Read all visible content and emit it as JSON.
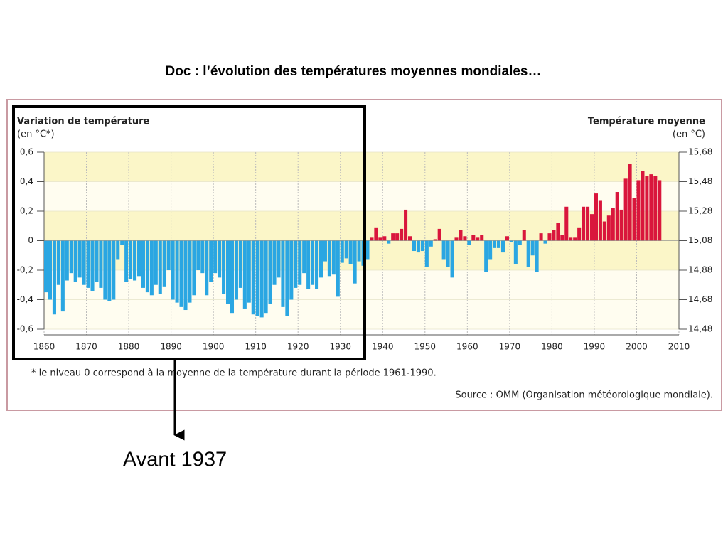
{
  "title": "Doc : l’évolution des températures moyennes mondiales…",
  "annotation": "Avant 1937",
  "chart_data": {
    "type": "bar",
    "ylabel": [
      "Variation de température",
      "(en °C*)"
    ],
    "y2label": [
      "Température moyenne",
      "(en °C)"
    ],
    "footnote": "* le niveau 0 correspond à la moyenne de la température durant la période 1961-1990.",
    "source": "Source : OMM (Organisation météorologique mondiale).",
    "x": [
      1860,
      1861,
      1862,
      1863,
      1864,
      1865,
      1866,
      1867,
      1868,
      1869,
      1870,
      1871,
      1872,
      1873,
      1874,
      1875,
      1876,
      1877,
      1878,
      1879,
      1880,
      1881,
      1882,
      1883,
      1884,
      1885,
      1886,
      1887,
      1888,
      1889,
      1890,
      1891,
      1892,
      1893,
      1894,
      1895,
      1896,
      1897,
      1898,
      1899,
      1900,
      1901,
      1902,
      1903,
      1904,
      1905,
      1906,
      1907,
      1908,
      1909,
      1910,
      1911,
      1912,
      1913,
      1914,
      1915,
      1916,
      1917,
      1918,
      1919,
      1920,
      1921,
      1922,
      1923,
      1924,
      1925,
      1926,
      1927,
      1928,
      1929,
      1930,
      1931,
      1932,
      1933,
      1934,
      1935,
      1936,
      1937,
      1938,
      1939,
      1940,
      1941,
      1942,
      1943,
      1944,
      1945,
      1946,
      1947,
      1948,
      1949,
      1950,
      1951,
      1952,
      1953,
      1954,
      1955,
      1956,
      1957,
      1958,
      1959,
      1960,
      1961,
      1962,
      1963,
      1964,
      1965,
      1966,
      1967,
      1968,
      1969,
      1970,
      1971,
      1972,
      1973,
      1974,
      1975,
      1976,
      1977,
      1978,
      1979,
      1980,
      1981,
      1982,
      1983,
      1984,
      1985,
      1986,
      1987,
      1988,
      1989,
      1990,
      1991,
      1992,
      1993,
      1994,
      1995,
      1996,
      1997,
      1998,
      1999,
      2000,
      2001,
      2002,
      2003,
      2004,
      2005
    ],
    "values": [
      -0.35,
      -0.4,
      -0.5,
      -0.3,
      -0.48,
      -0.27,
      -0.22,
      -0.28,
      -0.25,
      -0.3,
      -0.32,
      -0.34,
      -0.28,
      -0.32,
      -0.4,
      -0.41,
      -0.4,
      -0.13,
      -0.03,
      -0.28,
      -0.26,
      -0.27,
      -0.24,
      -0.32,
      -0.35,
      -0.37,
      -0.3,
      -0.36,
      -0.31,
      -0.2,
      -0.4,
      -0.42,
      -0.45,
      -0.47,
      -0.42,
      -0.37,
      -0.2,
      -0.22,
      -0.37,
      -0.28,
      -0.22,
      -0.25,
      -0.36,
      -0.43,
      -0.49,
      -0.4,
      -0.32,
      -0.46,
      -0.42,
      -0.5,
      -0.51,
      -0.52,
      -0.49,
      -0.43,
      -0.3,
      -0.25,
      -0.45,
      -0.51,
      -0.4,
      -0.32,
      -0.3,
      -0.22,
      -0.33,
      -0.3,
      -0.33,
      -0.25,
      -0.14,
      -0.24,
      -0.23,
      -0.38,
      -0.15,
      -0.12,
      -0.16,
      -0.29,
      -0.14,
      -0.17,
      -0.13,
      0.02,
      0.09,
      0.02,
      0.03,
      -0.02,
      0.05,
      0.05,
      0.08,
      0.21,
      0.03,
      -0.07,
      -0.08,
      -0.07,
      -0.18,
      -0.04,
      0.01,
      0.08,
      -0.13,
      -0.18,
      -0.25,
      0.02,
      0.07,
      0.03,
      -0.03,
      0.04,
      0.02,
      0.04,
      -0.21,
      -0.13,
      -0.05,
      -0.05,
      -0.08,
      0.03,
      -0.01,
      -0.16,
      -0.03,
      0.07,
      -0.18,
      -0.1,
      -0.21,
      0.05,
      -0.02,
      0.05,
      0.07,
      0.12,
      0.04,
      0.23,
      0.02,
      0.02,
      0.09,
      0.23,
      0.23,
      0.18,
      0.32,
      0.27,
      0.13,
      0.17,
      0.22,
      0.33,
      0.21,
      0.42,
      0.52,
      0.29,
      0.41,
      0.47,
      0.44,
      0.45,
      0.44,
      0.41
    ],
    "colors": {
      "positive": "#d9163c",
      "negative": "#2aa6e2"
    },
    "xlim": [
      1860,
      2010
    ],
    "xticks": [
      1860,
      1870,
      1880,
      1890,
      1900,
      1910,
      1920,
      1930,
      1940,
      1950,
      1960,
      1970,
      1980,
      1990,
      2000,
      2010
    ],
    "ylim": [
      -0.6,
      0.6
    ],
    "yticks": [
      {
        "value": -0.6,
        "label": "-0,6"
      },
      {
        "value": -0.4,
        "label": "-0,4"
      },
      {
        "value": -0.2,
        "label": "-0,2"
      },
      0,
      {
        "value": 0.2,
        "label": "0,2"
      },
      {
        "value": 0.4,
        "label": "0,4"
      },
      {
        "value": 0.6,
        "label": "0,6"
      }
    ],
    "y2lim": [
      14.48,
      15.68
    ],
    "y2ticks": [
      {
        "value": 14.48,
        "label": "14,48"
      },
      {
        "value": 14.68,
        "label": "14,68"
      },
      {
        "value": 14.88,
        "label": "14,88"
      },
      {
        "value": 15.08,
        "label": "15,08"
      },
      {
        "value": 15.28,
        "label": "15,28"
      },
      {
        "value": 15.48,
        "label": "15,48"
      },
      {
        "value": 15.68,
        "label": "15,68"
      }
    ],
    "grid": true
  }
}
